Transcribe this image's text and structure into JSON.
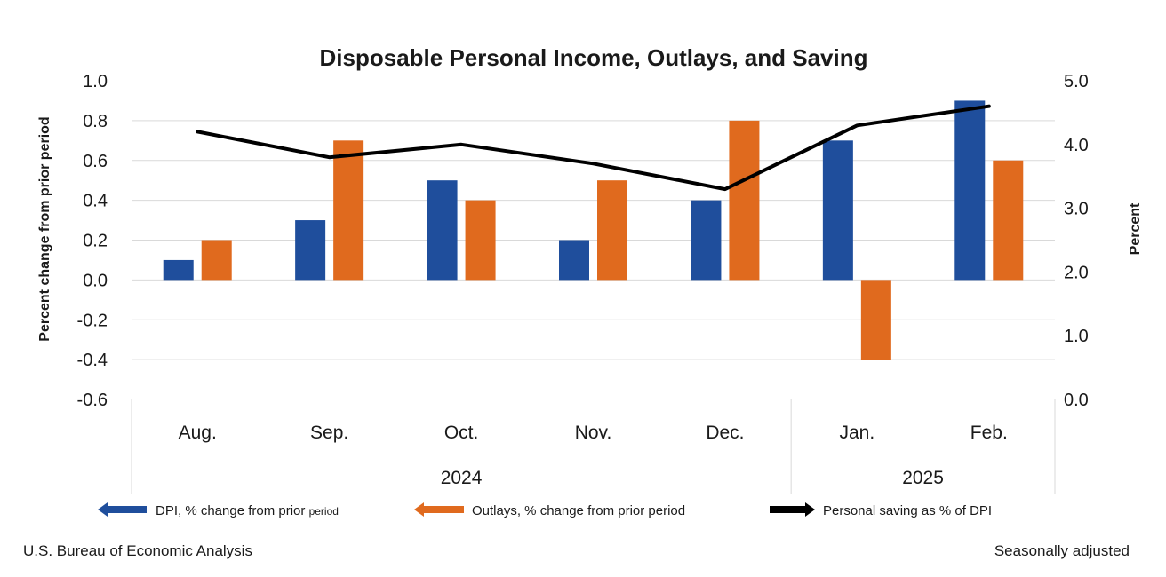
{
  "chart_data": {
    "type": "bar",
    "title": "Disposable Personal Income, Outlays, and Saving",
    "ylabel": "Percent change from prior period",
    "y2label": "Percent",
    "ylim": [
      -0.6,
      1.0
    ],
    "y2lim": [
      0.0,
      5.0
    ],
    "yticks": [
      "1.0",
      "0.8",
      "0.6",
      "0.4",
      "0.2",
      "0.0",
      "-0.2",
      "-0.4",
      "-0.6"
    ],
    "y2ticks": [
      "5.0",
      "4.0",
      "3.0",
      "2.0",
      "1.0",
      "0.0"
    ],
    "grid": true,
    "legend_position": "bottom",
    "categories": [
      "Aug.",
      "Sep.",
      "Oct.",
      "Nov.",
      "Dec.",
      "Jan.",
      "Feb."
    ],
    "groups": [
      {
        "label": "2024",
        "count": 5
      },
      {
        "label": "2025",
        "count": 2
      }
    ],
    "series": [
      {
        "name": "DPI, % change from prior period",
        "type": "bar",
        "axis": "left",
        "color": "#1f4e9c",
        "values": [
          0.1,
          0.3,
          0.5,
          0.2,
          0.4,
          0.7,
          0.9
        ]
      },
      {
        "name": "Outlays, % change from prior period",
        "type": "bar",
        "axis": "left",
        "color": "#e06a1e",
        "values": [
          0.2,
          0.7,
          0.4,
          0.5,
          0.8,
          -0.4,
          0.6
        ]
      },
      {
        "name": "Personal saving as % of DPI",
        "type": "line",
        "axis": "right",
        "color": "#000000",
        "values": [
          4.2,
          3.8,
          4.0,
          3.7,
          3.3,
          4.3,
          4.6
        ]
      }
    ],
    "legend": {
      "dpi_main": "DPI, % change from prior ",
      "dpi_small": "period",
      "outlays": "Outlays, % change from prior period",
      "saving": "Personal saving as % of DPI"
    }
  },
  "footer": {
    "source": "U.S. Bureau of Economic Analysis",
    "note": "Seasonally adjusted"
  }
}
